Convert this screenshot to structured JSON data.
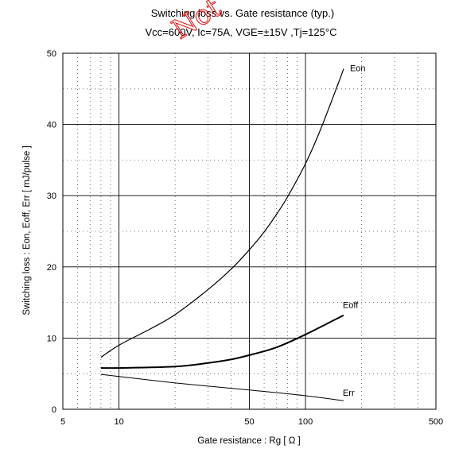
{
  "chart_data": {
    "type": "line",
    "title": "Switching loss  vs.  Gate resistance (typ.)",
    "subtitle": "Vcc=600V, Ic=75A, VGE=±15V ,Tj=125°C",
    "xlabel": "Gate resistance  :  Rg  [    Ω ]",
    "ylabel": "Switching loss  :  Eon, Eoff, Err  [  mJ/pulse ]",
    "xscale": "log",
    "xlim": [
      5,
      500
    ],
    "ylim": [
      0,
      50
    ],
    "xticks": [
      5,
      10,
      50,
      100,
      500
    ],
    "yticks": [
      0,
      10,
      20,
      30,
      40,
      50
    ],
    "grid": true,
    "series": [
      {
        "name": "Eon",
        "x": [
          8,
          10,
          15,
          20,
          30,
          40,
          50,
          60,
          70,
          80,
          100,
          120,
          150,
          160
        ],
        "y": [
          7.3,
          9.0,
          11.4,
          13.3,
          16.8,
          19.7,
          22.4,
          24.9,
          27.4,
          29.8,
          34.5,
          39.2,
          45.8,
          47.8
        ]
      },
      {
        "name": "Eoff",
        "x": [
          8,
          10,
          20,
          30,
          40,
          50,
          70,
          100,
          130,
          160
        ],
        "y": [
          5.8,
          5.8,
          6.0,
          6.5,
          7.0,
          7.6,
          8.7,
          10.5,
          12.0,
          13.2
        ]
      },
      {
        "name": "Err",
        "x": [
          8,
          10,
          20,
          50,
          100,
          160
        ],
        "y": [
          4.9,
          4.6,
          3.7,
          2.7,
          1.9,
          1.2
        ]
      }
    ],
    "annotations": {
      "watermark": "Not"
    }
  }
}
